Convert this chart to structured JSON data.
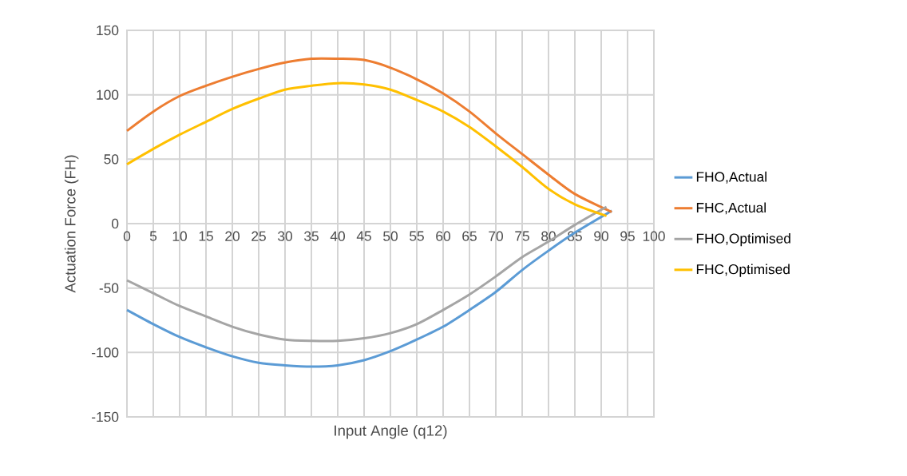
{
  "chart_data": {
    "type": "line",
    "xlabel": "Input Angle (q12)",
    "ylabel": "Actuation Force (FH)",
    "xlim": [
      0,
      100
    ],
    "xticks": [
      0,
      5,
      10,
      15,
      20,
      25,
      30,
      35,
      40,
      45,
      50,
      55,
      60,
      65,
      70,
      75,
      80,
      85,
      90,
      95,
      100
    ],
    "ylim": [
      -150,
      150
    ],
    "yticks": [
      -150,
      -100,
      -50,
      0,
      50,
      100,
      150
    ],
    "grid": true,
    "legend": "right",
    "marker": "none",
    "line_style": "solid",
    "series": [
      {
        "name": "FHO,Actual",
        "color": "#5b9bd5",
        "x": [
          0,
          5,
          10,
          15,
          20,
          25,
          30,
          35,
          40,
          45,
          50,
          55,
          60,
          65,
          70,
          75,
          80,
          85,
          92
        ],
        "values": [
          -67,
          -78,
          -88,
          -96,
          -103,
          -108,
          -110,
          -111,
          -110,
          -106,
          -99,
          -90,
          -80,
          -67,
          -53,
          -36,
          -21,
          -7,
          10
        ]
      },
      {
        "name": "FHC,Actual",
        "color": "#ed7d31",
        "x": [
          0,
          5,
          10,
          15,
          20,
          25,
          30,
          35,
          40,
          45,
          50,
          55,
          60,
          65,
          70,
          75,
          80,
          85,
          92
        ],
        "values": [
          72,
          87,
          99,
          107,
          114,
          120,
          125,
          128,
          128,
          127,
          121,
          112,
          101,
          87,
          70,
          54,
          38,
          23,
          9
        ]
      },
      {
        "name": "FHO,Optimised",
        "color": "#a5a5a5",
        "x": [
          0,
          5,
          10,
          15,
          20,
          25,
          30,
          35,
          40,
          45,
          50,
          55,
          60,
          65,
          70,
          75,
          80,
          85,
          91
        ],
        "values": [
          -44,
          -54,
          -64,
          -72,
          -80,
          -86,
          -90,
          -91,
          -91,
          -89,
          -85,
          -78,
          -67,
          -55,
          -41,
          -26,
          -14,
          -1,
          13
        ]
      },
      {
        "name": "FHC,Optimised",
        "color": "#ffc000",
        "x": [
          0,
          5,
          10,
          15,
          20,
          25,
          30,
          35,
          40,
          45,
          50,
          55,
          60,
          65,
          70,
          75,
          80,
          85,
          91
        ],
        "values": [
          46,
          58,
          69,
          79,
          89,
          97,
          104,
          107,
          109,
          108,
          104,
          96,
          87,
          75,
          60,
          44,
          27,
          15,
          6
        ]
      }
    ]
  }
}
